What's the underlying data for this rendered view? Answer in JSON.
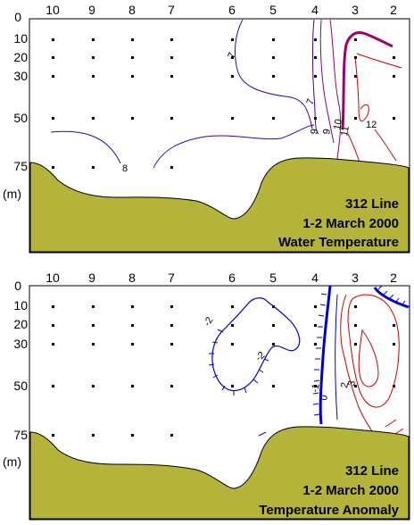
{
  "station_labels": [
    "10",
    "9",
    "8",
    "7",
    "6",
    "5",
    "4",
    "3",
    "2"
  ],
  "depth_labels": [
    "0",
    "10",
    "20",
    "30",
    "50",
    "75"
  ],
  "unit_label": "(m)",
  "panel_top": {
    "info": [
      "312 Line",
      "1-2 March 2000",
      "Water Temperature"
    ],
    "contour_labels": [
      "7",
      "7",
      "8",
      "9",
      "9",
      "10",
      "11",
      "12"
    ]
  },
  "panel_bottom": {
    "info": [
      "312 Line",
      "1-2  March 2000",
      "Temperature Anomaly"
    ],
    "contour_labels": [
      "-2",
      "-2",
      "0",
      "-1",
      "2",
      "3"
    ]
  },
  "colors": {
    "bottom_fill": "#b5b43a",
    "cold_contour": "#0000cc",
    "warm_contour": "#cc0000",
    "temp_contour_7": "#3a00b0",
    "temp_contour_12": "#a0006a"
  }
}
